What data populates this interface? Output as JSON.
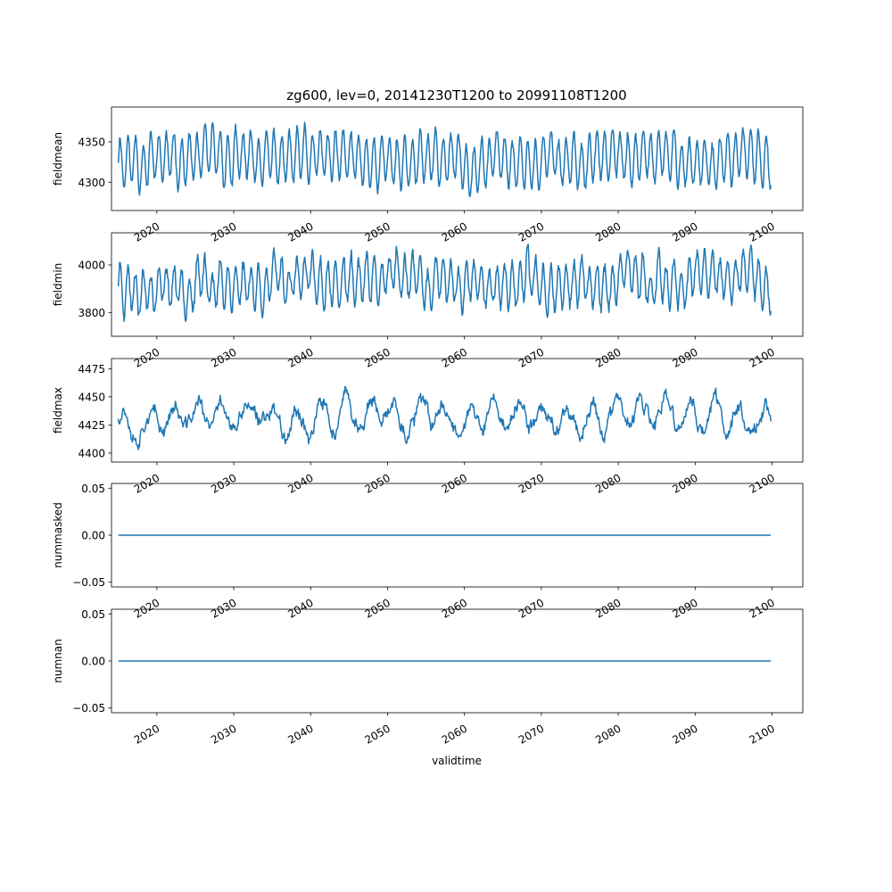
{
  "figure": {
    "title": "zg600, lev=0, 20141230T1200 to 20991108T1200",
    "xlabel": "validtime"
  },
  "chart_data": [
    {
      "type": "line",
      "id": "fieldmean",
      "ylabel": "fieldmean",
      "xlim": [
        2014.1,
        2104.0
      ],
      "ylim": [
        4265,
        4393
      ],
      "yticks": [
        4300,
        4350
      ],
      "ytick_labels": [
        "4300",
        "4350"
      ],
      "xticks": [
        2020,
        2030,
        2040,
        2050,
        2060,
        2070,
        2080,
        2090,
        2100
      ],
      "xtick_labels": [
        "2020",
        "2030",
        "2040",
        "2050",
        "2060",
        "2070",
        "2080",
        "2090",
        "2100"
      ],
      "x_range": [
        2014.99,
        2099.85
      ],
      "series_style": {
        "color": "#1f77b4",
        "cycle_years": 1.0,
        "mean": 4328,
        "amplitude": 30,
        "noise": 10,
        "seed": 11
      },
      "series": [
        {
          "values_note": "",
          "min": 4270,
          "max": 4388
        }
      ]
    },
    {
      "type": "line",
      "id": "fieldmin",
      "ylabel": "fieldmin",
      "xlim": [
        2014.1,
        2104.0
      ],
      "ylim": [
        3700,
        4135
      ],
      "yticks": [
        3800,
        4000
      ],
      "ytick_labels": [
        "3800",
        "4000"
      ],
      "xticks": [
        2020,
        2030,
        2040,
        2050,
        2060,
        2070,
        2080,
        2090,
        2100
      ],
      "xtick_labels": [
        "2020",
        "2030",
        "2040",
        "2050",
        "2060",
        "2070",
        "2080",
        "2090",
        "2100"
      ],
      "x_range": [
        2014.99,
        2099.85
      ],
      "series_style": {
        "color": "#1f77b4",
        "cycle_years": 1.0,
        "mean": 3925,
        "amplitude": 85,
        "noise": 45,
        "seed": 23
      },
      "series": [
        {
          "values_note": "",
          "min": 3725,
          "max": 4130
        }
      ]
    },
    {
      "type": "line",
      "id": "fieldmax",
      "ylabel": "fieldmax",
      "xlim": [
        2014.1,
        2104.0
      ],
      "ylim": [
        4392,
        4484
      ],
      "yticks": [
        4400,
        4425,
        4450,
        4475
      ],
      "ytick_labels": [
        "4400",
        "4425",
        "4450",
        "4475"
      ],
      "xticks": [
        2020,
        2030,
        2040,
        2050,
        2060,
        2070,
        2080,
        2090,
        2100
      ],
      "xtick_labels": [
        "2020",
        "2030",
        "2040",
        "2050",
        "2060",
        "2070",
        "2080",
        "2090",
        "2100"
      ],
      "x_range": [
        2014.99,
        2099.85
      ],
      "series_style": {
        "color": "#1f77b4",
        "cycle_years": 3.2,
        "mean": 4432,
        "amplitude": 12,
        "noise": 9,
        "seed": 37
      },
      "series": [
        {
          "values_note": "",
          "min": 4395,
          "max": 4482
        }
      ]
    },
    {
      "type": "line",
      "id": "nummasked",
      "ylabel": "nummasked",
      "xlim": [
        2014.1,
        2104.0
      ],
      "ylim": [
        -0.055,
        0.055
      ],
      "yticks": [
        -0.05,
        0.0,
        0.05
      ],
      "ytick_labels": [
        "−0.05",
        "0.00",
        "0.05"
      ],
      "xticks": [
        2020,
        2030,
        2040,
        2050,
        2060,
        2070,
        2080,
        2090,
        2100
      ],
      "xtick_labels": [
        "2020",
        "2030",
        "2040",
        "2050",
        "2060",
        "2070",
        "2080",
        "2090",
        "2100"
      ],
      "x_range": [
        2014.99,
        2099.85
      ],
      "series_style": {
        "color": "#1f77b4",
        "constant": 0.0
      },
      "series": [
        {
          "values_note": "",
          "min": 0.0,
          "max": 0.0
        }
      ]
    },
    {
      "type": "line",
      "id": "numnan",
      "ylabel": "numnan",
      "xlim": [
        2014.1,
        2104.0
      ],
      "ylim": [
        -0.055,
        0.055
      ],
      "yticks": [
        -0.05,
        0.0,
        0.05
      ],
      "ytick_labels": [
        "−0.05",
        "0.00",
        "0.05"
      ],
      "xticks": [
        2020,
        2030,
        2040,
        2050,
        2060,
        2070,
        2080,
        2090,
        2100
      ],
      "xtick_labels": [
        "2020",
        "2030",
        "2040",
        "2050",
        "2060",
        "2070",
        "2080",
        "2090",
        "2100"
      ],
      "x_range": [
        2014.99,
        2099.85
      ],
      "series_style": {
        "color": "#1f77b4",
        "constant": 0.0
      },
      "series": [
        {
          "values_note": "",
          "min": 0.0,
          "max": 0.0
        }
      ]
    }
  ]
}
